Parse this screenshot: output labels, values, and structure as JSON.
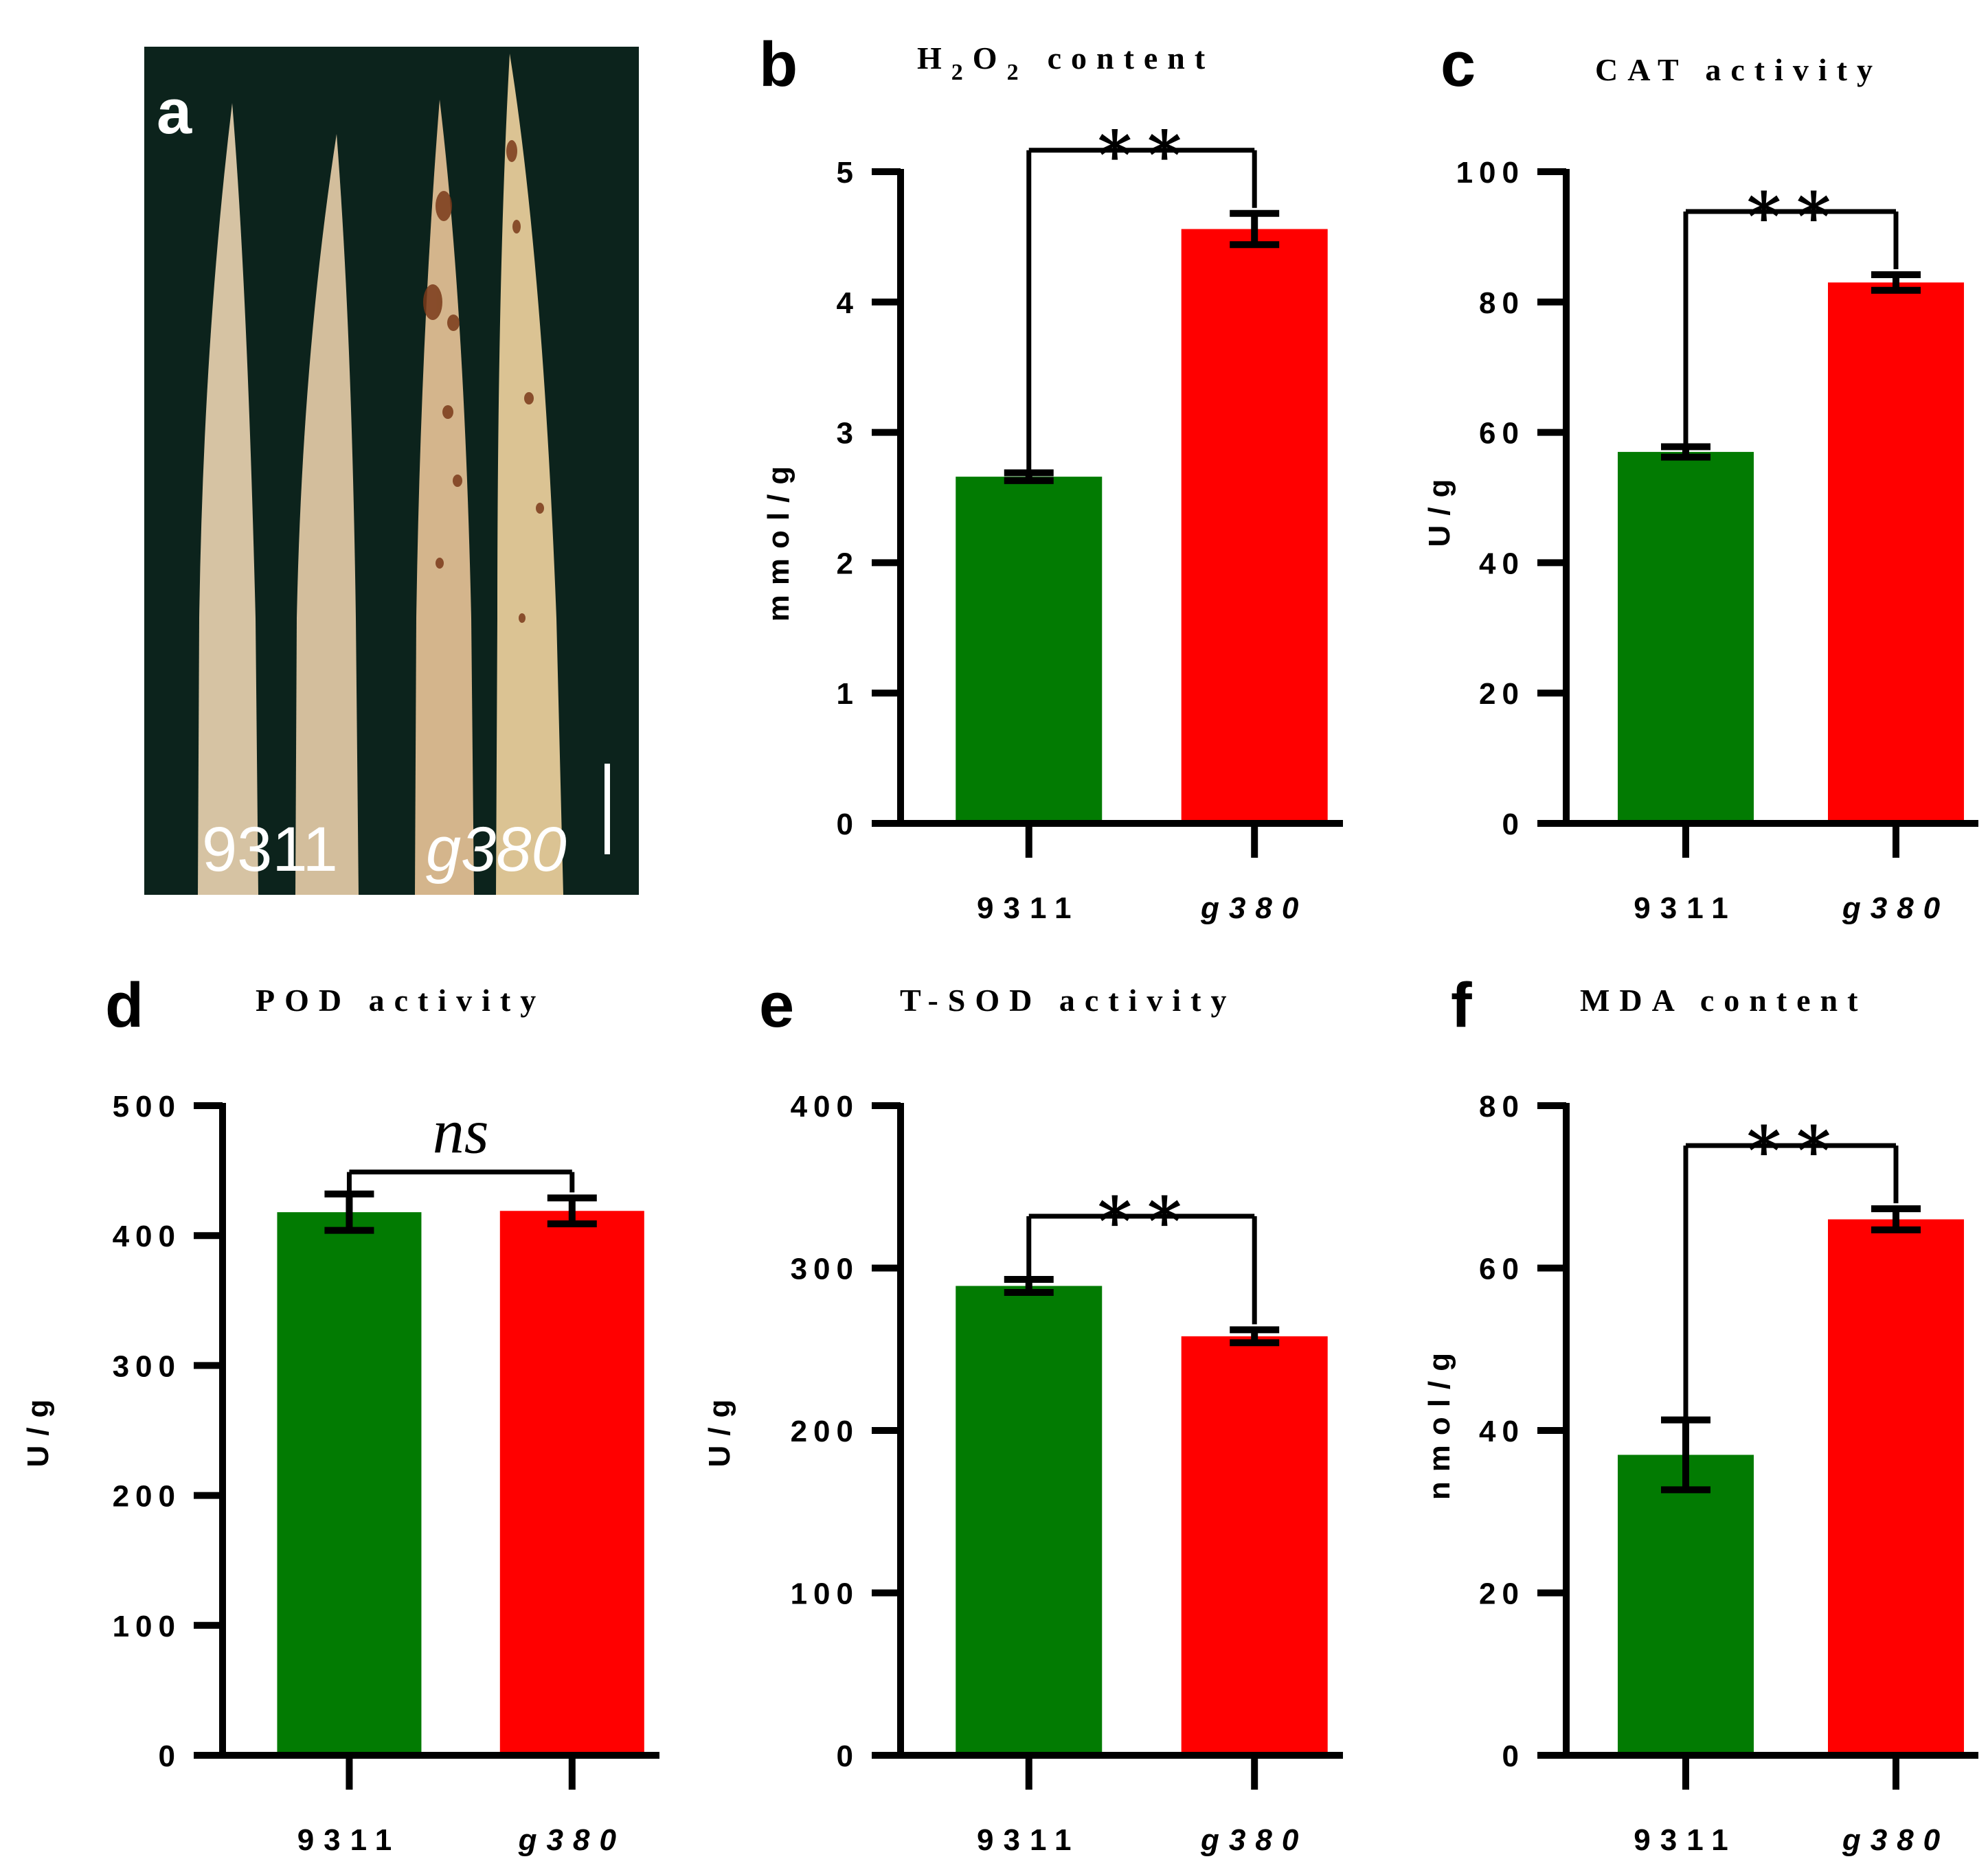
{
  "figure": {
    "panel_a": {
      "letter": "a",
      "label_left": "9311",
      "label_right": "g380"
    }
  },
  "colors": {
    "green": "#027B02",
    "red": "#FF0000",
    "photo_bg": "#0C231C"
  },
  "chart_data": [
    {
      "id": "b",
      "letter": "b",
      "type": "bar",
      "title": "H₂O₂ content",
      "title_main": "H",
      "title_sub1": "2",
      "title_mid": "O",
      "title_sub2": "2",
      "title_tail": "content",
      "ylabel": "mmol/g",
      "categories": [
        "9311",
        "g380"
      ],
      "values": [
        2.66,
        4.56
      ],
      "errors": [
        0.03,
        0.12
      ],
      "ylim": [
        0,
        5
      ],
      "yticks": [
        "0",
        "1",
        "2",
        "3",
        "4",
        "5"
      ],
      "significance": "**"
    },
    {
      "id": "c",
      "letter": "c",
      "type": "bar",
      "title": "CAT activity",
      "ylabel": "U/g",
      "categories": [
        "9311",
        "g380"
      ],
      "values": [
        57,
        83
      ],
      "errors": [
        0.8,
        1.2
      ],
      "ylim": [
        0,
        100
      ],
      "yticks": [
        "0",
        "20",
        "40",
        "60",
        "80",
        "100"
      ],
      "significance": "**"
    },
    {
      "id": "d",
      "letter": "d",
      "type": "bar",
      "title": "POD activity",
      "ylabel": "U/g",
      "categories": [
        "9311",
        "g380"
      ],
      "values": [
        418,
        419
      ],
      "errors": [
        14,
        10
      ],
      "ylim": [
        0,
        500
      ],
      "yticks": [
        "0",
        "100",
        "200",
        "300",
        "400",
        "500"
      ],
      "significance": "ns"
    },
    {
      "id": "e",
      "letter": "e",
      "type": "bar",
      "title": "T-SOD activity",
      "ylabel": "U/g",
      "categories": [
        "9311",
        "g380"
      ],
      "values": [
        289,
        258
      ],
      "errors": [
        4,
        4
      ],
      "ylim": [
        0,
        400
      ],
      "yticks": [
        "0",
        "100",
        "200",
        "300",
        "400"
      ],
      "significance": "**"
    },
    {
      "id": "f",
      "letter": "f",
      "type": "bar",
      "title": "MDA content",
      "ylabel": "nmol/g",
      "categories": [
        "9311",
        "g380"
      ],
      "values": [
        37,
        66
      ],
      "errors": [
        4.3,
        1.3
      ],
      "ylim": [
        0,
        80
      ],
      "yticks": [
        "0",
        "20",
        "40",
        "60",
        "80"
      ],
      "significance": "**"
    }
  ]
}
